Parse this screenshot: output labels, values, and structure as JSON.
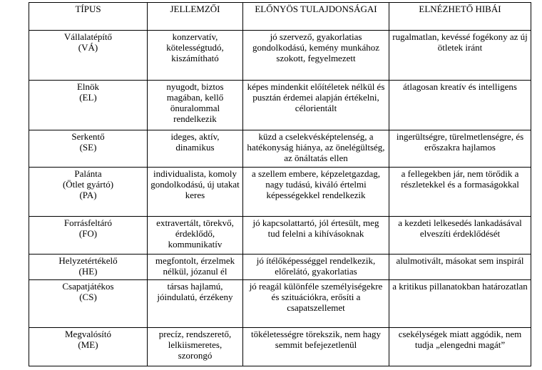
{
  "headers": {
    "type": "TÍPUS",
    "traits": "JELLEMZŐI",
    "strengths": "ELŐNYÖS TULAJDONSÁGAI",
    "weaknesses": "ELNÉZHETŐ HIBÁI"
  },
  "rows": [
    {
      "name": "Vállalatépítő",
      "abbr": "(VÁ)",
      "traits": "konzervatív, kötelességtudó, kiszámítható",
      "strengths": "jó szervező, gyakorlatias gondolkodású, kemény munkához szokott, fegyelmezett",
      "weaknesses": "rugalmatlan, kevéssé fogékony az új ötletek iránt"
    },
    {
      "name": "Elnök",
      "abbr": "(EL)",
      "traits": "nyugodt, biztos magában, kellő önuralommal rendelkezik",
      "strengths": "képes mindenkit előítéletek nélkül és pusztán érdemei alapján értékelni, célorientált",
      "weaknesses": "átlagosan kreatív és intelligens"
    },
    {
      "name": "Serkentő",
      "abbr": "(SE)",
      "traits": "ideges, aktív, dinamikus",
      "strengths": "küzd a cselekvésképtelenség, a hatékonyság hiánya, az önelégültség, az önáltatás ellen",
      "weaknesses": "ingerültségre, türelmetlenségre, és erőszakra hajlamos"
    },
    {
      "name": "Palánta",
      "abbr_line2": "(Ötlet gyártó)",
      "abbr": "(PA)",
      "traits": "individualista, komoly gondolkodású, új utakat keres",
      "strengths": "a szellem embere, képzeletgazdag, nagy tudású, kiváló értelmi képességekkel rendelkezik",
      "weaknesses": "a fellegekben jár, nem törődik a részletekkel és a formaságokkal"
    },
    {
      "name": "Forrásfeltáró",
      "abbr": "(FO)",
      "traits": "extravertált, törekvő, érdeklődő, kommunikatív",
      "strengths": "jó kapcsolattartó, jól értesült, meg tud felelni a kihívásoknak",
      "weaknesses": "a kezdeti lelkesedés lankadásával elveszíti érdeklődését"
    },
    {
      "name": "Helyzetértékelő",
      "abbr": "(HE)",
      "traits": "megfontolt, érzelmek nélkül, józanul él",
      "strengths": "jó ítélőképességgel rendelkezik, előrelátó, gyakorlatias",
      "weaknesses": "alulmotivált, másokat sem inspirál"
    },
    {
      "name": "Csapatjátékos",
      "abbr": "(CS)",
      "traits": "társas hajlamú, jóindulatú, érzékeny",
      "strengths": "jó reagál különféle személyiségekre és szituációkra, erősíti a csapatszellemet",
      "weaknesses": "a kritikus pillanatokban határozatlan"
    },
    {
      "name": "Megvalósító",
      "abbr": "(ME)",
      "traits": "precíz, rendszerető, lelkiismeretes, szorongó",
      "strengths": "tökéletességre törekszik, nem hagy semmit befejezetlenül",
      "weaknesses": "csekélységek miatt aggódik, nem tudja „elengedni magát”"
    }
  ]
}
